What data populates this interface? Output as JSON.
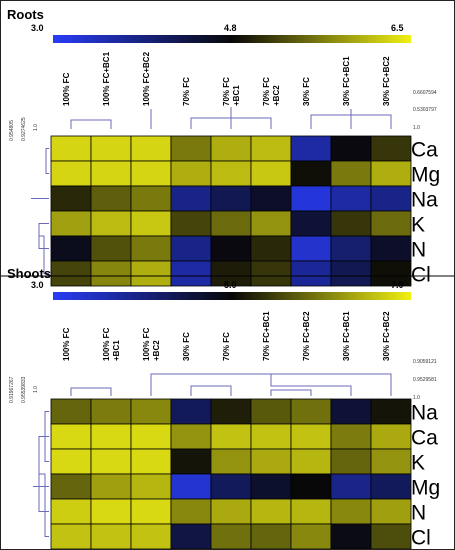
{
  "chart_data": [
    {
      "type": "heatmap",
      "title": "Roots",
      "colorbar": {
        "min": 3.0,
        "mid": 4.8,
        "max": 6.5,
        "labels": [
          "3.0",
          "4.8",
          "6.5"
        ]
      },
      "columns": [
        "100% FC",
        "100% FC+BC1",
        "100% FC+BC2",
        "70% FC",
        "70% FC +BC1",
        "70% FC +BC2",
        "30% FC",
        "30% FC+BC1",
        "30% FC+BC2"
      ],
      "rows": [
        "Ca",
        "Mg",
        "Na",
        "K",
        "N",
        "Cl"
      ],
      "values": [
        [
          6.3,
          6.3,
          6.3,
          5.6,
          6.0,
          6.1,
          3.6,
          4.7,
          5.1
        ],
        [
          6.3,
          6.3,
          6.3,
          6.0,
          6.1,
          6.2,
          4.8,
          5.6,
          6.0
        ],
        [
          5.0,
          5.4,
          5.6,
          3.8,
          4.2,
          4.5,
          3.2,
          3.6,
          3.8
        ],
        [
          5.9,
          6.1,
          6.2,
          5.2,
          5.5,
          5.8,
          4.4,
          5.1,
          5.5
        ],
        [
          4.6,
          5.3,
          5.6,
          3.8,
          4.7,
          5.0,
          3.3,
          4.0,
          4.5
        ],
        [
          5.2,
          5.7,
          6.0,
          3.6,
          4.9,
          5.1,
          3.7,
          4.2,
          4.8
        ]
      ],
      "col_dendrogram_scale": [
        "0.6607594",
        "0.5303797",
        "1.0"
      ],
      "row_dendrogram_scale": [
        "0.954805",
        "0.9274625",
        "1.0"
      ]
    },
    {
      "type": "heatmap",
      "title": "Shoots",
      "colorbar": {
        "min": 3.0,
        "mid": 5.0,
        "max": 7.0,
        "labels": [
          "3.0",
          "5.0",
          "7.0"
        ]
      },
      "columns": [
        "100% FC",
        "100% FC +BC1",
        "100% FC +BC2",
        "30% FC",
        "70% FC",
        "70% FC+BC1",
        "70% FC+BC2",
        "30% FC+BC1",
        "30% FC+BC2"
      ],
      "rows": [
        "Na",
        "Ca",
        "K",
        "Mg",
        "N",
        "Cl"
      ],
      "values": [
        [
          5.8,
          6.0,
          6.1,
          4.3,
          5.2,
          5.7,
          5.9,
          4.6,
          5.1
        ],
        [
          6.8,
          6.8,
          6.8,
          6.2,
          6.6,
          6.6,
          6.6,
          6.0,
          6.4
        ],
        [
          6.8,
          6.8,
          6.8,
          5.1,
          6.2,
          6.4,
          6.5,
          5.8,
          6.2
        ],
        [
          5.8,
          6.3,
          6.5,
          3.3,
          4.3,
          4.7,
          5.0,
          3.9,
          4.3
        ],
        [
          6.7,
          6.8,
          6.8,
          6.1,
          6.4,
          6.5,
          6.5,
          6.1,
          6.3
        ],
        [
          6.6,
          6.6,
          6.6,
          4.5,
          5.9,
          5.8,
          6.1,
          4.9,
          5.6
        ]
      ],
      "col_dendrogram_scale": [
        "0.9059121",
        "0.9529581",
        "1.0"
      ],
      "row_dendrogram_scale": [
        "0.91967267",
        "0.95539833",
        "1.0"
      ]
    }
  ]
}
